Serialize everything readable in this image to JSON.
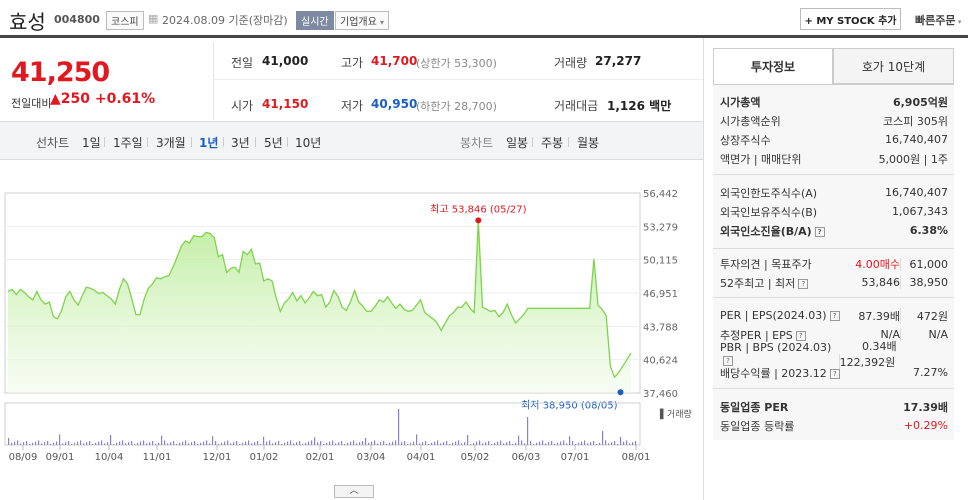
{
  "header": {
    "name": "효성",
    "code": "004800",
    "market": "코스피",
    "date": "2024.08.09 기준(장마감)",
    "realtime": "실시간",
    "corp_overview": "기업개요",
    "my_stock": "+ MY STOCK 추가",
    "quick_order": "빠른주문"
  },
  "quote": {
    "price": "41,250",
    "change_label": "전일대비",
    "change": "▲250",
    "change_pct": "+0.61%",
    "prev_label": "전일",
    "prev": "41,000",
    "high_label": "고가",
    "high": "41,700",
    "upper_limit": "(상한가 53,300)",
    "volume_label": "거래량",
    "volume": "27,277",
    "open_label": "시가",
    "open": "41,150",
    "low_label": "저가",
    "low": "40,950",
    "lower_limit": "(하한가 28,700)",
    "amount_label": "거래대금",
    "amount": "1,126",
    "amount_unit": "백만"
  },
  "tabs": {
    "line_chart": "선차트",
    "periods": [
      "1일",
      "1주일",
      "3개월",
      "1년",
      "3년",
      "5년",
      "10년"
    ],
    "candle_chart": "봉차트",
    "candle_periods": [
      "일봉",
      "주봉",
      "월봉"
    ]
  },
  "chart_data": {
    "type": "line",
    "y_ticks": [
      "56,442",
      "53,279",
      "50,115",
      "46,951",
      "43,788",
      "40,624",
      "37,460"
    ],
    "ylim": [
      37460,
      56442
    ],
    "x_ticks": [
      "08/09",
      "09/01",
      "10/04",
      "11/01",
      "12/01",
      "01/02",
      "02/01",
      "03/04",
      "04/01",
      "05/02",
      "06/03",
      "07/01",
      "08/01"
    ],
    "high_label": "최고 53,846 (05/27)",
    "low_label": "최저 38,950 (08/05)",
    "volume_label": "거래량",
    "series": [
      {
        "values": [
          47100,
          47300,
          46800,
          47300,
          47000,
          46600,
          46300,
          47100,
          46300,
          45900,
          46100,
          44700,
          44500,
          45300,
          46600,
          47100,
          46300,
          45800,
          46700,
          47500,
          47400,
          47200,
          46900,
          47000,
          46700,
          46400,
          45900,
          47300,
          48300,
          47800,
          46400,
          44900,
          44900,
          46400,
          47400,
          47800,
          48400,
          48300,
          48500,
          48600,
          49400,
          50400,
          51400,
          51900,
          51700,
          52400,
          52300,
          52300,
          52700,
          52600,
          52200,
          50400,
          50600,
          48900,
          49300,
          49400,
          48900,
          50900,
          50600,
          51100,
          49700,
          49800,
          48100,
          48300,
          48100,
          46500,
          45200,
          46000,
          46400,
          47000,
          46200,
          46700,
          46000,
          46500,
          47100,
          46700,
          46800,
          45600,
          46100,
          47200,
          46600,
          45600,
          45300,
          46100,
          47200,
          46100,
          45700,
          45200,
          45200,
          45700,
          46300,
          46100,
          46600,
          46000,
          45500,
          45900,
          45400,
          45200,
          45300,
          45800,
          46300,
          45100,
          44800,
          44500,
          44100,
          43400,
          44100,
          44800,
          45100,
          45600,
          45600,
          46100,
          45500,
          45100,
          53846,
          45600,
          45400,
          45200,
          45300,
          44700,
          45100,
          45900,
          44900,
          44100,
          44500,
          44900,
          45500,
          45500,
          45500,
          45500,
          45500,
          45500,
          45500,
          45500,
          45500,
          45500,
          45500,
          45500,
          45500,
          45500,
          45500,
          45500,
          50200,
          45800,
          45400,
          44800,
          40000,
          38950,
          39400,
          40000,
          40624,
          41250
        ],
        "color": "#7fd34c"
      }
    ]
  },
  "info": {
    "tab_invest": "투자정보",
    "tab_orderbook": "호가 10단계",
    "rows1": [
      {
        "k": "시가총액",
        "v": "6,905억원"
      },
      {
        "k": "시가총액순위",
        "v": "코스피 305위"
      },
      {
        "k": "상장주식수",
        "v": "16,740,407"
      },
      {
        "k": "액면가 | 매매단위",
        "v": "5,000원 | 1주"
      }
    ],
    "rows2": [
      {
        "k": "외국인한도주식수(A)",
        "v": "16,740,407"
      },
      {
        "k": "외국인보유주식수(B)",
        "v": "1,067,343"
      },
      {
        "k": "외국인소진율(B/A)",
        "v": "6.38%"
      }
    ],
    "rows3": [
      {
        "k": "투자의견 | 목표주가",
        "v1": "4.00매수",
        "v2": "61,000"
      },
      {
        "k": "52주최고 | 최저",
        "v1": "53,846",
        "v2": "38,950"
      }
    ],
    "rows4": [
      {
        "k": "PER | EPS(2024.03)",
        "v1": "87.39배",
        "v2": "472원"
      },
      {
        "k": "추정PER | EPS",
        "v1": "N/A",
        "v2": "N/A"
      },
      {
        "k": "PBR | BPS (2024.03)",
        "v1": "0.34배",
        "v2": "122,392원"
      },
      {
        "k": "배당수익률 | 2023.12",
        "v1": "",
        "v2": "7.27%"
      }
    ],
    "rows5": [
      {
        "k": "동일업종 PER",
        "v": "17.39배"
      },
      {
        "k": "동일업종 등락률",
        "v": "+0.29%"
      }
    ]
  }
}
